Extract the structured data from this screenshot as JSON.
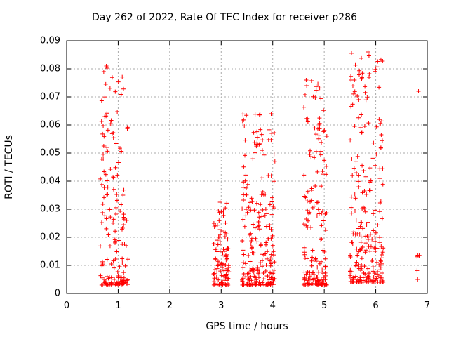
{
  "chart_data": {
    "type": "scatter",
    "title": "Day 262 of 2022, Rate Of TEC Index for receiver p286",
    "xlabel": "GPS time / hours",
    "ylabel": "ROTI / TECUs",
    "xlim": [
      0,
      7
    ],
    "ylim": [
      0,
      0.09
    ],
    "x_ticks": [
      "0",
      "1",
      "2",
      "3",
      "4",
      "5",
      "6",
      "7"
    ],
    "y_ticks": [
      "0",
      "0.01",
      "0.02",
      "0.03",
      "0.04",
      "0.05",
      "0.06",
      "0.07",
      "0.08",
      "0.09"
    ],
    "grid": true,
    "marker": "+",
    "color": "#ff0000",
    "clusters": [
      {
        "x_start": 0.65,
        "x_end": 1.2,
        "y_min": 0.003,
        "y_max": 0.081,
        "points": 160
      },
      {
        "x_start": 2.85,
        "x_end": 3.15,
        "y_min": 0.003,
        "y_max": 0.033,
        "points": 110
      },
      {
        "x_start": 3.4,
        "x_end": 4.05,
        "y_min": 0.003,
        "y_max": 0.064,
        "points": 230
      },
      {
        "x_start": 4.6,
        "x_end": 5.05,
        "y_min": 0.003,
        "y_max": 0.076,
        "points": 170
      },
      {
        "x_start": 5.5,
        "x_end": 6.15,
        "y_min": 0.004,
        "y_max": 0.086,
        "points": 240
      },
      {
        "x_start": 6.8,
        "x_end": 6.85,
        "y_min": 0.005,
        "y_max": 0.072,
        "points": 6
      }
    ],
    "notable_points": [
      {
        "x": 0.72,
        "y": 0.079
      },
      {
        "x": 0.77,
        "y": 0.081
      },
      {
        "x": 0.74,
        "y": 0.063
      },
      {
        "x": 0.78,
        "y": 0.052
      },
      {
        "x": 3.97,
        "y": 0.064
      },
      {
        "x": 3.98,
        "y": 0.057
      },
      {
        "x": 4.65,
        "y": 0.076
      },
      {
        "x": 4.66,
        "y": 0.074
      },
      {
        "x": 5.05,
        "y": 0.056
      },
      {
        "x": 5.52,
        "y": 0.076
      },
      {
        "x": 5.67,
        "y": 0.069
      },
      {
        "x": 5.85,
        "y": 0.086
      },
      {
        "x": 5.87,
        "y": 0.077
      },
      {
        "x": 6.83,
        "y": 0.072
      }
    ]
  }
}
